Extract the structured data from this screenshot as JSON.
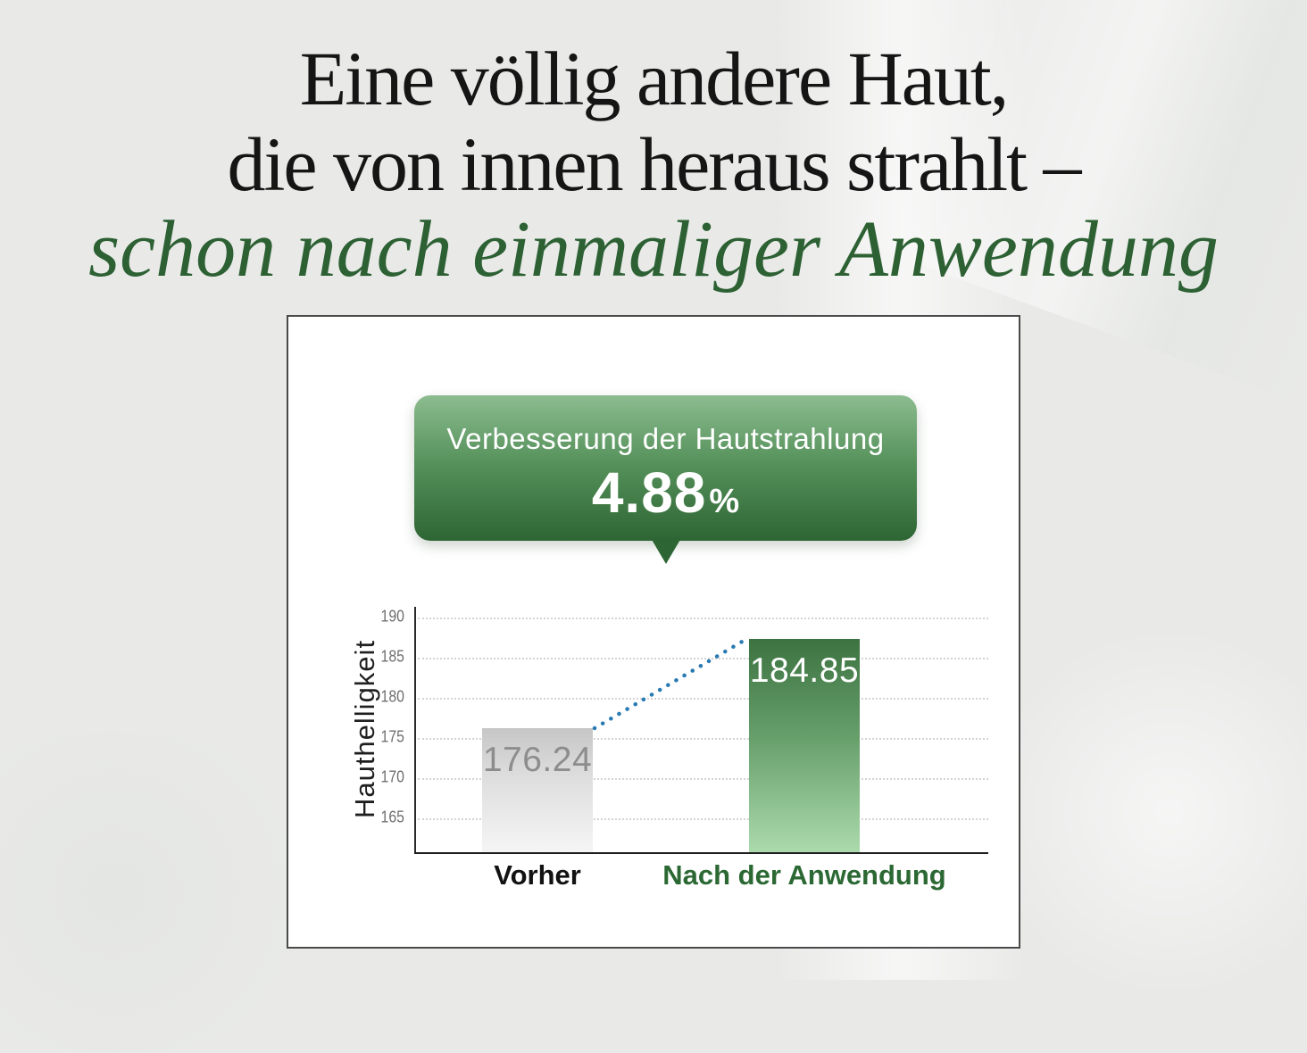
{
  "headline": {
    "line1": "Eine völlig andere Haut,",
    "line2": "die von innen heraus strahlt –",
    "line3": "schon nach einmaliger Anwendung"
  },
  "callout": {
    "title": "Verbesserung der Hautstrahlung",
    "value": "4.88",
    "unit": "%"
  },
  "chart_data": {
    "type": "bar",
    "categories": [
      "Vorher",
      "Nach der Anwendung"
    ],
    "values": [
      176.24,
      184.85
    ],
    "value_labels": [
      "176.24",
      "184.85"
    ],
    "ylabel": "Hauthelligkeit",
    "xlabel": "",
    "yticks": [
      165,
      170,
      175,
      180,
      185,
      190
    ],
    "ylim": [
      160.8,
      192
    ],
    "grid": "horizontal dotted lines",
    "legend": "none",
    "annotation": {
      "text": "Verbesserung der Hautstrahlung",
      "value": "4.88%"
    },
    "trendline": {
      "style": "dotted connector between bar tops",
      "color": "#2979b3",
      "from": 176.24,
      "to": 184.85
    },
    "displayed_tops": [
      176.24,
      187.4
    ],
    "bar_styles": [
      "gray gradient #c6c6c6 to #f5f5f5",
      "green gradient #3c7341 to #abdaad"
    ],
    "category_label_colors": [
      "#121212",
      "#2b6833"
    ]
  },
  "colors": {
    "page_bg": "#e9eae8",
    "headline_text": "#151515",
    "headline_accent_green": "#2d6134",
    "card_bg": "#ffffff",
    "card_border": "#4a4a4a",
    "callout_gradient_top": "#8cbc90",
    "callout_gradient_bottom": "#2e6534",
    "callout_text": "#ffffff",
    "before_value_text": "#8d8d8d",
    "after_value_text": "#ffffff",
    "trend_dots": "#2979b3",
    "gridline": "#d4d4d4",
    "axis": "#2b2b2b",
    "tick_text": "#6f6f6f"
  }
}
